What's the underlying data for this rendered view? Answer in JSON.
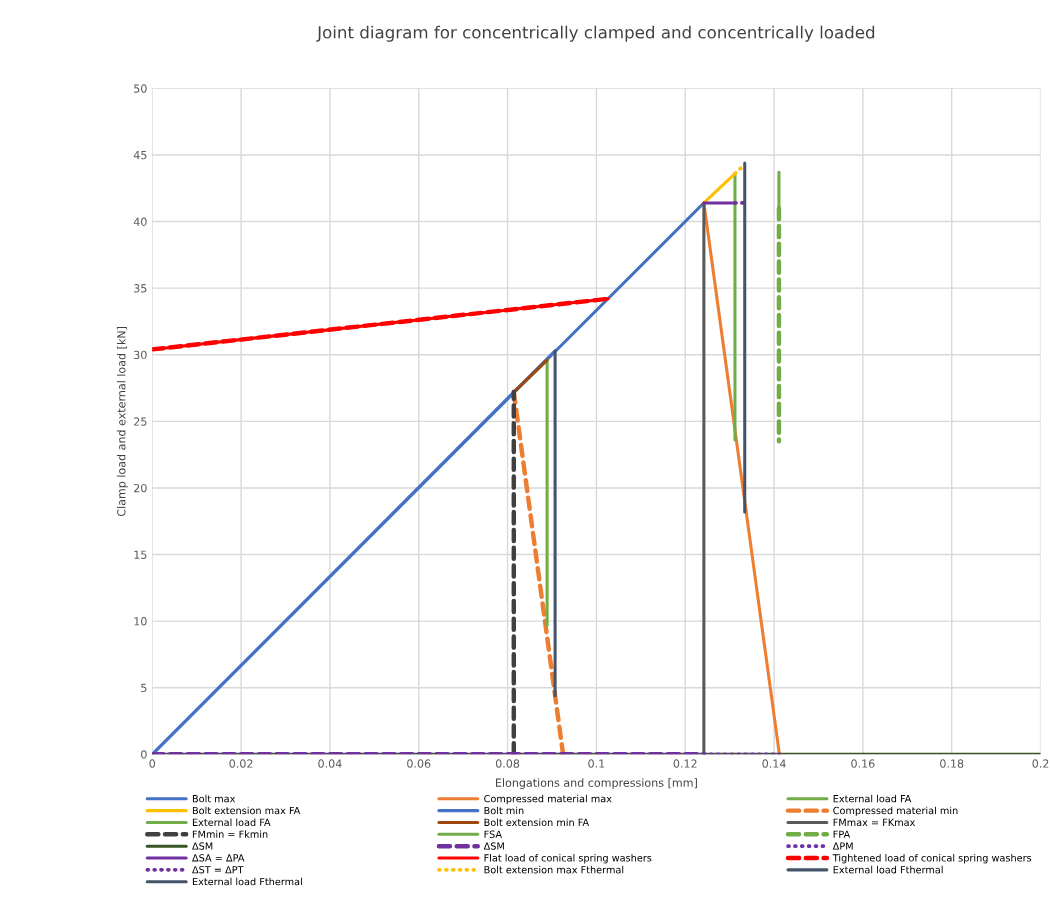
{
  "chart_data": {
    "type": "line",
    "title": "Joint diagram for concentrically clamped and concentrically loaded",
    "xlabel": "Elongations and compressions [mm]",
    "ylabel": "Clamp load and external load [kN]",
    "xlim": [
      0,
      0.2
    ],
    "xticks": [
      0,
      0.02,
      0.04,
      0.06,
      0.08,
      0.1,
      0.12,
      0.14,
      0.16,
      0.18,
      0.2
    ],
    "ylim": [
      0,
      50
    ],
    "yticks": [
      0,
      5,
      10,
      15,
      20,
      25,
      30,
      35,
      40,
      45,
      50
    ],
    "grid": true,
    "legend": "bottom",
    "series": [
      {
        "name": "Bolt max",
        "color": "#4472c4",
        "line_style": "solid",
        "x": [
          0,
          0.1242
        ],
        "values": [
          0,
          41.4
        ]
      },
      {
        "name": "Compressed material max",
        "color": "#ed7d31",
        "line_style": "solid",
        "x": [
          0.1242,
          0.1412
        ],
        "values": [
          41.4,
          0
        ]
      },
      {
        "name": "External load FA",
        "color": "#70ad47",
        "line_style": "solid",
        "x": [
          0.1312,
          0.1312
        ],
        "values": [
          43.6,
          23.6
        ]
      },
      {
        "name": "Bolt extension max FA",
        "color": "#ffc000",
        "line_style": "solid",
        "x": [
          0.1242,
          0.1312
        ],
        "values": [
          41.4,
          43.6
        ]
      },
      {
        "name": "Bolt min",
        "color": "#4472c4",
        "line_style": "solid",
        "x": [
          0,
          0.0907
        ],
        "values": [
          0,
          30.3
        ]
      },
      {
        "name": "Compressed material min",
        "color": "#ed7d31",
        "line_style": "dashed",
        "x": [
          0.0814,
          0.0925
        ],
        "values": [
          27.2,
          0
        ]
      },
      {
        "name": "External load FA",
        "color": "#70ad47",
        "line_style": "solid",
        "x": [
          0.0889,
          0.0889
        ],
        "values": [
          29.6,
          9.7
        ]
      },
      {
        "name": "Bolt extension min FA",
        "color": "#9e480e",
        "line_style": "solid",
        "x": [
          0.0814,
          0.0889
        ],
        "values": [
          27.2,
          29.6
        ]
      },
      {
        "name": "FMmax = FKmax",
        "color": "#595959",
        "line_style": "solid",
        "x": [
          0.1242,
          0.1242
        ],
        "values": [
          0,
          41.4
        ]
      },
      {
        "name": "FMmin = Fkmin",
        "color": "#404040",
        "line_style": "dashed",
        "x": [
          0.0814,
          0.0814
        ],
        "values": [
          0,
          27.2
        ]
      },
      {
        "name": "FSA",
        "color": "#70ad47",
        "line_style": "solid",
        "x": [
          0.1411,
          0.1411
        ],
        "values": [
          43.7,
          41.0
        ]
      },
      {
        "name": "FPA",
        "color": "#70ad47",
        "line_style": "dashed",
        "x": [
          0.1411,
          0.1411
        ],
        "values": [
          41.0,
          23.5
        ]
      },
      {
        "name": "ΔSM",
        "color": "#375623",
        "line_style": "solid",
        "x": [
          0,
          0.2
        ],
        "values": [
          0,
          0
        ]
      },
      {
        "name": "ΔSM",
        "color": "#7030a0",
        "line_style": "dashed",
        "x": [
          0,
          0.1242
        ],
        "values": [
          0,
          0
        ]
      },
      {
        "name": "ΔPM",
        "color": "#7030a0",
        "line_style": "dotted",
        "x": [
          0.1242,
          0.1412
        ],
        "values": [
          0,
          0
        ]
      },
      {
        "name": "ΔSA = ΔPA",
        "color": "#7030a0",
        "line_style": "solid",
        "x": [
          0.1242,
          0.1312
        ],
        "values": [
          41.4,
          41.4
        ]
      },
      {
        "name": "Flat load of conical spring washers",
        "color": "#ff0000",
        "line_style": "solid",
        "x": [
          0,
          0.1026
        ],
        "values": [
          30.4,
          34.2
        ]
      },
      {
        "name": "Tightened load of conical spring washers",
        "color": "#ff0000",
        "line_style": "dashed",
        "x": [
          0,
          0.1026
        ],
        "values": [
          30.4,
          34.2
        ]
      },
      {
        "name": "ΔST = ΔPT",
        "color": "#7030a0",
        "line_style": "dotted",
        "x": [
          0.1312,
          0.1334
        ],
        "values": [
          41.4,
          41.4
        ]
      },
      {
        "name": "Bolt extension max Fthermal",
        "color": "#ffc000",
        "line_style": "dotted",
        "x": [
          0.1312,
          0.1334
        ],
        "values": [
          43.6,
          44.3
        ]
      },
      {
        "name": "External load Fthermal",
        "color": "#44546a",
        "line_style": "solid",
        "x": [
          0.1334,
          0.1334
        ],
        "values": [
          44.4,
          18.2
        ]
      },
      {
        "name": "External load Fthermal",
        "color": "#44546a",
        "line_style": "solid",
        "x": [
          0.0907,
          0.0907
        ],
        "values": [
          30.3,
          4.4
        ]
      }
    ]
  }
}
